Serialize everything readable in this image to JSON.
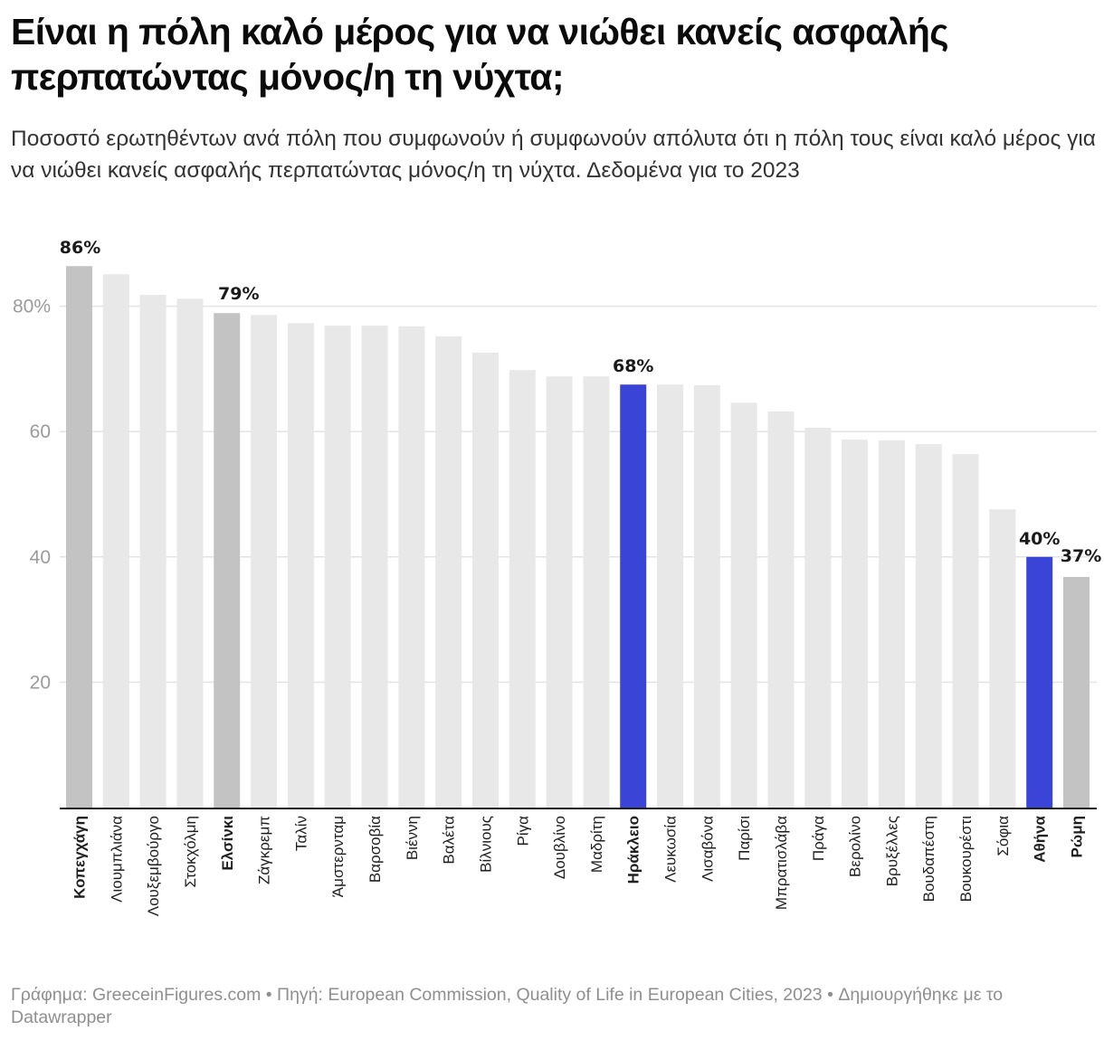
{
  "header": {
    "title": "Είναι η πόλη καλό μέρος για να νιώθει κανείς ασφαλής περπατώντας μόνος/η τη νύχτα;",
    "subtitle": "Ποσοστό ερωτηθέντων ανά πόλη που συμφωνούν ή συμφωνούν απόλυτα ότι η πόλη τους είναι καλό μέρος για να νιώθει κανείς ασφαλής περπατώντας μόνος/η τη νύχτα. Δεδομένα για το 2023"
  },
  "footer": {
    "text": "Γράφημα: GreeceinFigures.com • Πηγή: European Commission, Quality of Life in European Cities, 2023 • Δημιουργήθηκε με το Datawrapper"
  },
  "colors": {
    "default": "#e8e8e8",
    "grey_highlight": "#c3c3c3",
    "blue_highlight": "#3a45d8",
    "grid": "#e3e3e3",
    "axis": "#1a1a1a"
  },
  "chart_data": {
    "type": "bar",
    "title": "Είναι η πόλη καλό μέρος για να νιώθει κανείς ασφαλής περπατώντας μόνος/η τη νύχτα;",
    "xlabel": "",
    "ylabel": "",
    "ylim": [
      0,
      90
    ],
    "yticks": [
      20,
      40,
      60,
      80
    ],
    "ytick_labels": [
      "20",
      "40",
      "60",
      "80%"
    ],
    "grid": true,
    "categories": [
      "Κοπεγχάγη",
      "Λιουμπλιάνα",
      "Λουξεμβούργο",
      "Στοκχόλμη",
      "Ελσίνκι",
      "Ζάγκρεμπ",
      "Ταλίν",
      "Άμστερνταμ",
      "Βαρσοβία",
      "Βιέννη",
      "Βαλέτα",
      "Βίλνιους",
      "Ρίγα",
      "Δουβλίνο",
      "Μαδρίτη",
      "Ηράκλειο",
      "Λευκωσία",
      "Λισαβόνα",
      "Παρίσι",
      "Μπρατισλάβα",
      "Πράγα",
      "Βερολίνο",
      "Βρυξέλλες",
      "Βουδαπέστη",
      "Βουκουρέστι",
      "Σόφια",
      "Αθήνα",
      "Ρώμη"
    ],
    "values": [
      86.4,
      85.1,
      81.8,
      81.2,
      78.9,
      78.6,
      77.3,
      76.9,
      76.9,
      76.8,
      75.2,
      72.6,
      69.8,
      68.8,
      68.8,
      67.5,
      67.5,
      67.4,
      64.6,
      63.2,
      60.6,
      58.7,
      58.6,
      58.0,
      56.4,
      47.6,
      40.0,
      36.8
    ],
    "highlight": [
      "grey",
      "none",
      "none",
      "none",
      "grey",
      "none",
      "none",
      "none",
      "none",
      "none",
      "none",
      "none",
      "none",
      "none",
      "none",
      "blue",
      "none",
      "none",
      "none",
      "none",
      "none",
      "none",
      "none",
      "none",
      "none",
      "none",
      "blue",
      "grey"
    ],
    "bold_labels": [
      "Κοπεγχάγη",
      "Ελσίνκι",
      "Ηράκλειο",
      "Αθήνα",
      "Ρώμη"
    ],
    "data_labels": [
      {
        "category": "Κοπεγχάγη",
        "text": "86%"
      },
      {
        "category": "Ελσίνκι",
        "text": "79%"
      },
      {
        "category": "Ηράκλειο",
        "text": "68%"
      },
      {
        "category": "Αθήνα",
        "text": "40%"
      },
      {
        "category": "Ρώμη",
        "text": "37%"
      }
    ]
  }
}
